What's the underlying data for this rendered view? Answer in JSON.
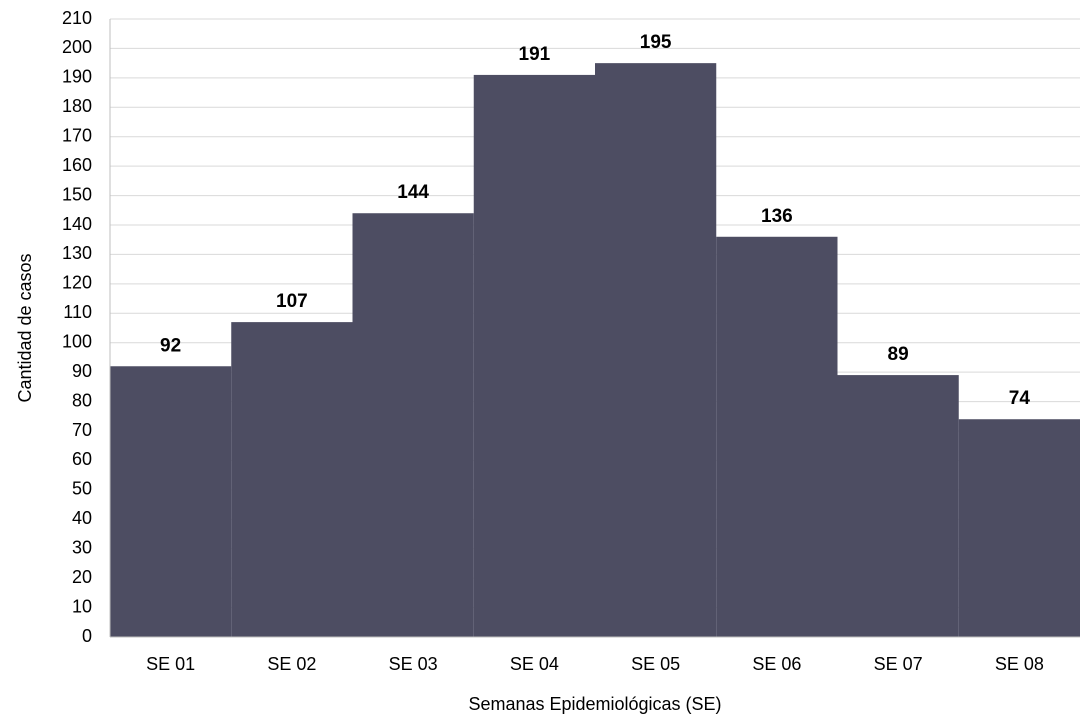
{
  "chart_data": {
    "type": "bar",
    "categories": [
      "SE 01",
      "SE 02",
      "SE 03",
      "SE 04",
      "SE 05",
      "SE 06",
      "SE 07",
      "SE 08"
    ],
    "values": [
      92,
      107,
      144,
      191,
      195,
      136,
      89,
      74
    ],
    "color": "#4d4d62",
    "x_label": "Semanas Epidemiológicas (SE)",
    "y_label": "Cantidad de casos",
    "ylim": [
      0,
      210
    ],
    "yticks": [
      0,
      10,
      20,
      30,
      40,
      50,
      60,
      70,
      80,
      90,
      100,
      110,
      120,
      130,
      140,
      150,
      160,
      170,
      180,
      190,
      200,
      210
    ],
    "grid": true
  }
}
